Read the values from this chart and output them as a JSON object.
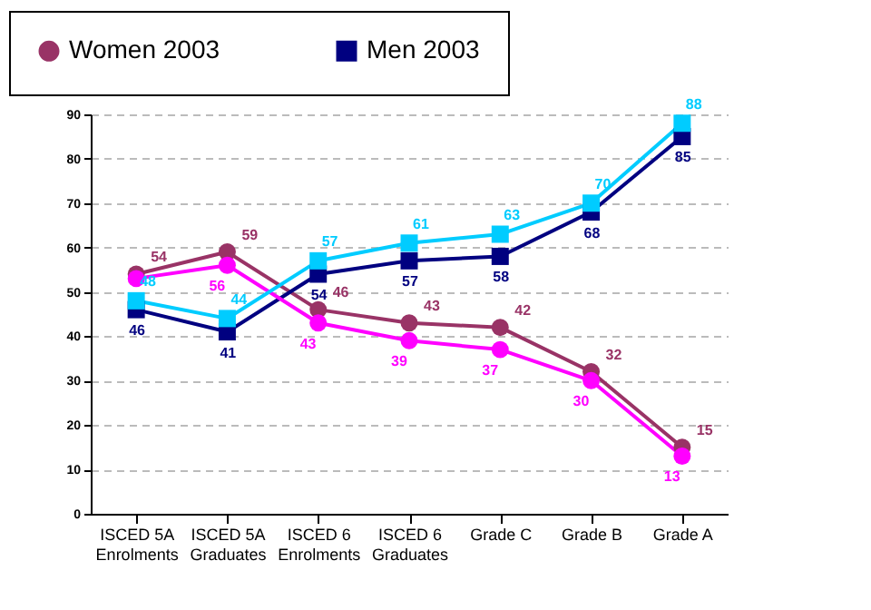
{
  "chart_data": {
    "type": "line",
    "categories": [
      "ISCED 5A Enrolments",
      "ISCED 5A Graduates",
      "ISCED 6 Enrolments",
      "ISCED 6 Graduates",
      "Grade C",
      "Grade B",
      "Grade A"
    ],
    "series": [
      {
        "name": "Women 2003",
        "color": "#993366",
        "marker": "circle",
        "values": [
          54,
          59,
          46,
          43,
          42,
          32,
          15
        ],
        "value_labels": [
          "54",
          "59",
          "46",
          "43",
          "42",
          "32",
          "15"
        ]
      },
      {
        "name": "Men 2003",
        "color": "#000080",
        "marker": "square",
        "values": [
          46,
          41,
          54,
          57,
          58,
          68,
          85
        ],
        "value_labels": [
          "46",
          "41",
          "54",
          "57",
          "58",
          "68",
          "85"
        ]
      },
      {
        "color": "#ff00ff",
        "marker": "circle",
        "values": [
          53,
          56,
          43,
          39,
          37,
          30,
          13
        ],
        "value_labels": [
          null,
          "56",
          "43",
          "39",
          "37",
          "30",
          "13"
        ]
      },
      {
        "color": "#00ccff",
        "marker": "square",
        "values": [
          48,
          44,
          57,
          61,
          63,
          70,
          88
        ],
        "value_labels": [
          "48",
          "44",
          "57",
          "61",
          "63",
          "70",
          "88"
        ]
      }
    ],
    "ylim": [
      0,
      90
    ],
    "yticks": [
      0,
      10,
      20,
      30,
      40,
      50,
      60,
      70,
      80,
      90
    ],
    "grid": "y",
    "legend": "top"
  }
}
